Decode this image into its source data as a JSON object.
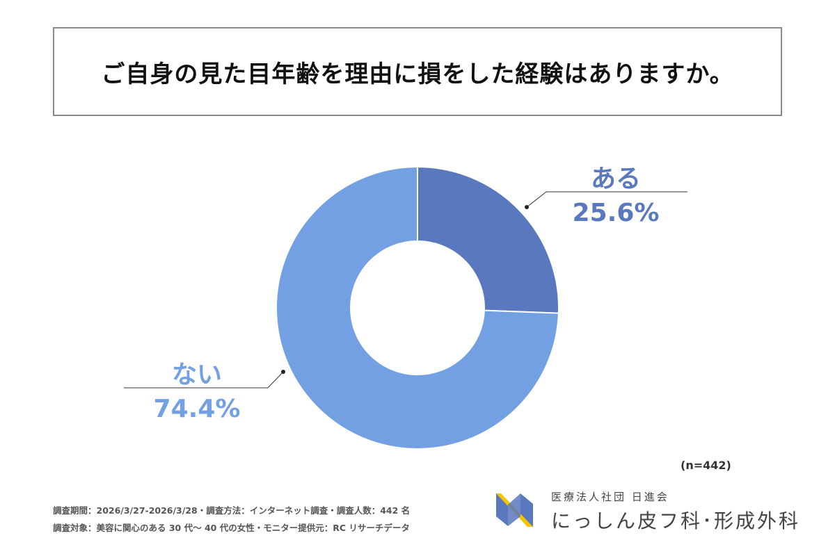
{
  "title": "ご自身の見た目年齢を理由に損をした経験はありますか。",
  "chart_data": {
    "type": "pie",
    "variant": "donut",
    "title": "ご自身の見た目年齢を理由に損をした経験はありますか。",
    "categories": [
      "ある",
      "ない"
    ],
    "values": [
      25.6,
      74.4
    ],
    "value_labels": [
      "25.6%",
      "74.4%"
    ],
    "colors": [
      "#5A78BE",
      "#72A0E2"
    ],
    "start": "top",
    "direction": "clockwise",
    "sample_size": "(n=442)"
  },
  "footer": {
    "line1": "調査期間：2026/3/27-2026/3/28・調査方法：インターネット調査・調査人数：442 名",
    "line2": "調査対象：美容に関心のある 30 代〜 40 代の女性・モニター提供元：RC リサーチデータ"
  },
  "logo": {
    "org": "医療法人社団 日進会",
    "name": "にっしん皮フ科･形成外科",
    "colors": [
      "#5A78BE",
      "#F2C500"
    ]
  }
}
